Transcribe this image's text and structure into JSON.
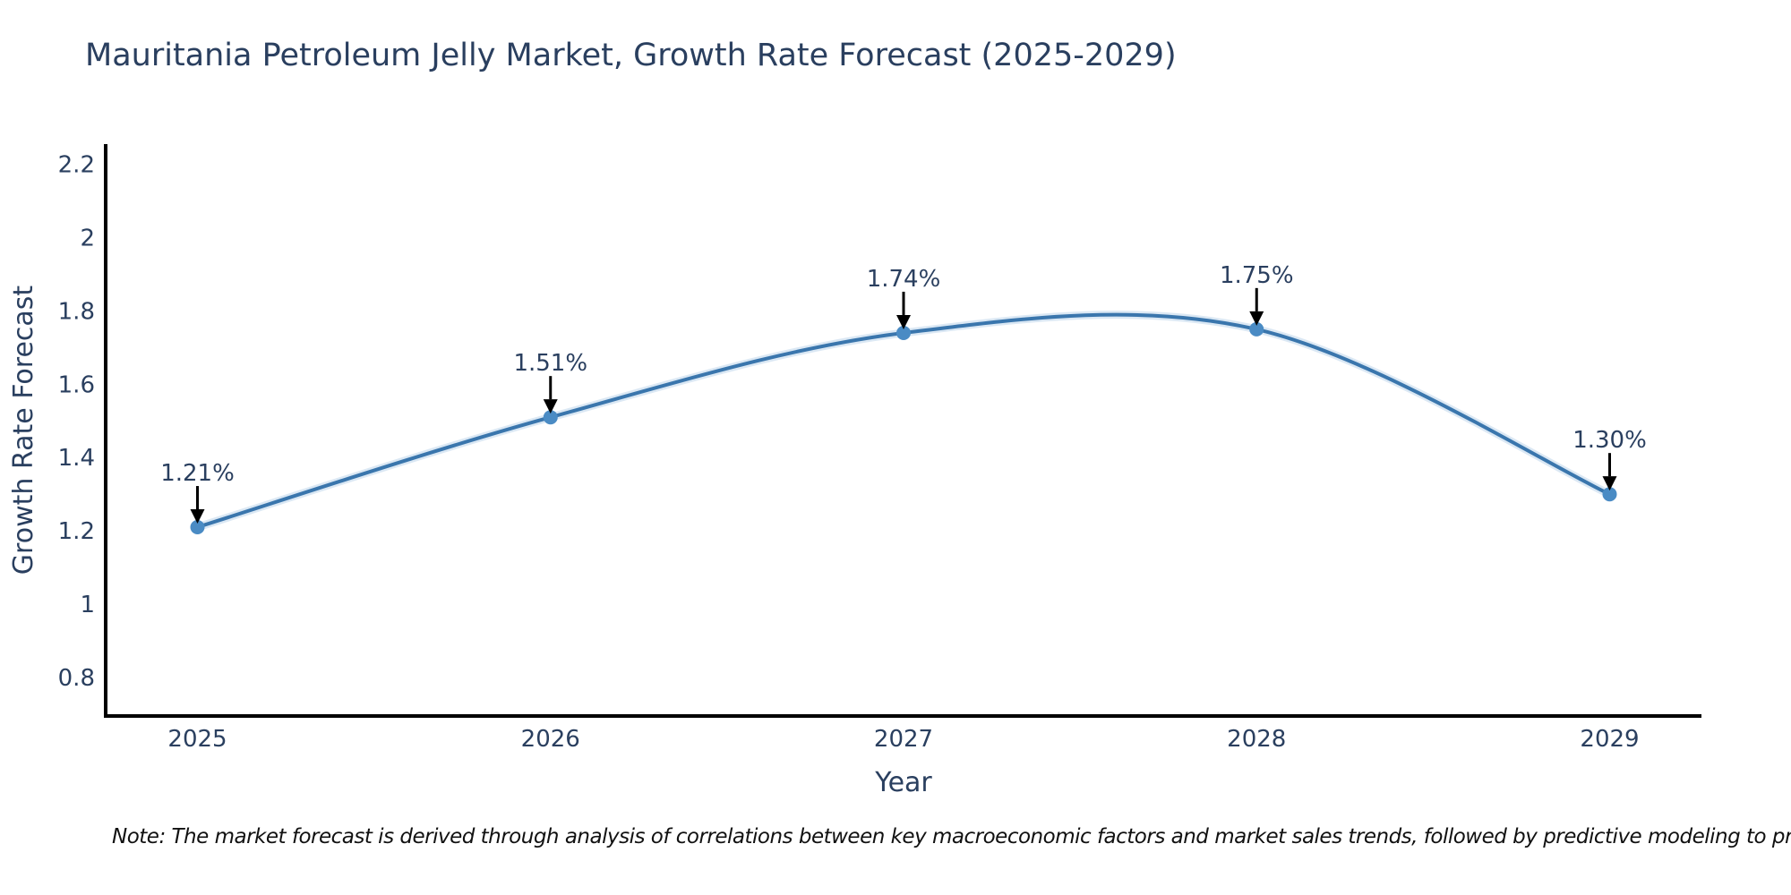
{
  "title": "Mauritania Petroleum Jelly Market, Growth Rate Forecast (2025-2029)",
  "note": "Note: The market forecast is derived through analysis of correlations between key macroeconomic factors and market sales trends, followed by predictive modeling to project future sales",
  "chart_data": {
    "type": "line",
    "title": "Mauritania Petroleum Jelly Market, Growth Rate Forecast (2025-2029)",
    "xlabel": "Year",
    "ylabel": "Growth Rate Forecast",
    "x": [
      2025,
      2026,
      2027,
      2028,
      2029
    ],
    "values": [
      1.21,
      1.51,
      1.74,
      1.75,
      1.3
    ],
    "point_labels": [
      "1.21%",
      "1.51%",
      "1.74%",
      "1.75%",
      "1.30%"
    ],
    "xtick_labels": [
      "2025",
      "2026",
      "2027",
      "2028",
      "2029"
    ],
    "yticks": [
      0.8,
      1.0,
      1.2,
      1.4,
      1.6,
      1.8,
      2.0,
      2.2
    ],
    "ytick_labels": [
      "0.8",
      "1",
      "1.2",
      "1.4",
      "1.6",
      "1.8",
      "2",
      "2.2"
    ],
    "xlim": [
      2024.74,
      2029.26
    ],
    "ylim": [
      0.695,
      2.255
    ],
    "line_shape": "spline",
    "grid": false,
    "legend_position": "none",
    "colors": {
      "line": "#3a76ad",
      "line_halo": "rgba(125, 173, 216, 0.28)",
      "marker": "#4a8bc4",
      "axis": "#000000",
      "tick_text": "#2a3f5f",
      "annotation_text": "#2a3f5f",
      "arrow": "#000000",
      "title_text": "#2a3f5f",
      "note_text": "#111111"
    }
  }
}
